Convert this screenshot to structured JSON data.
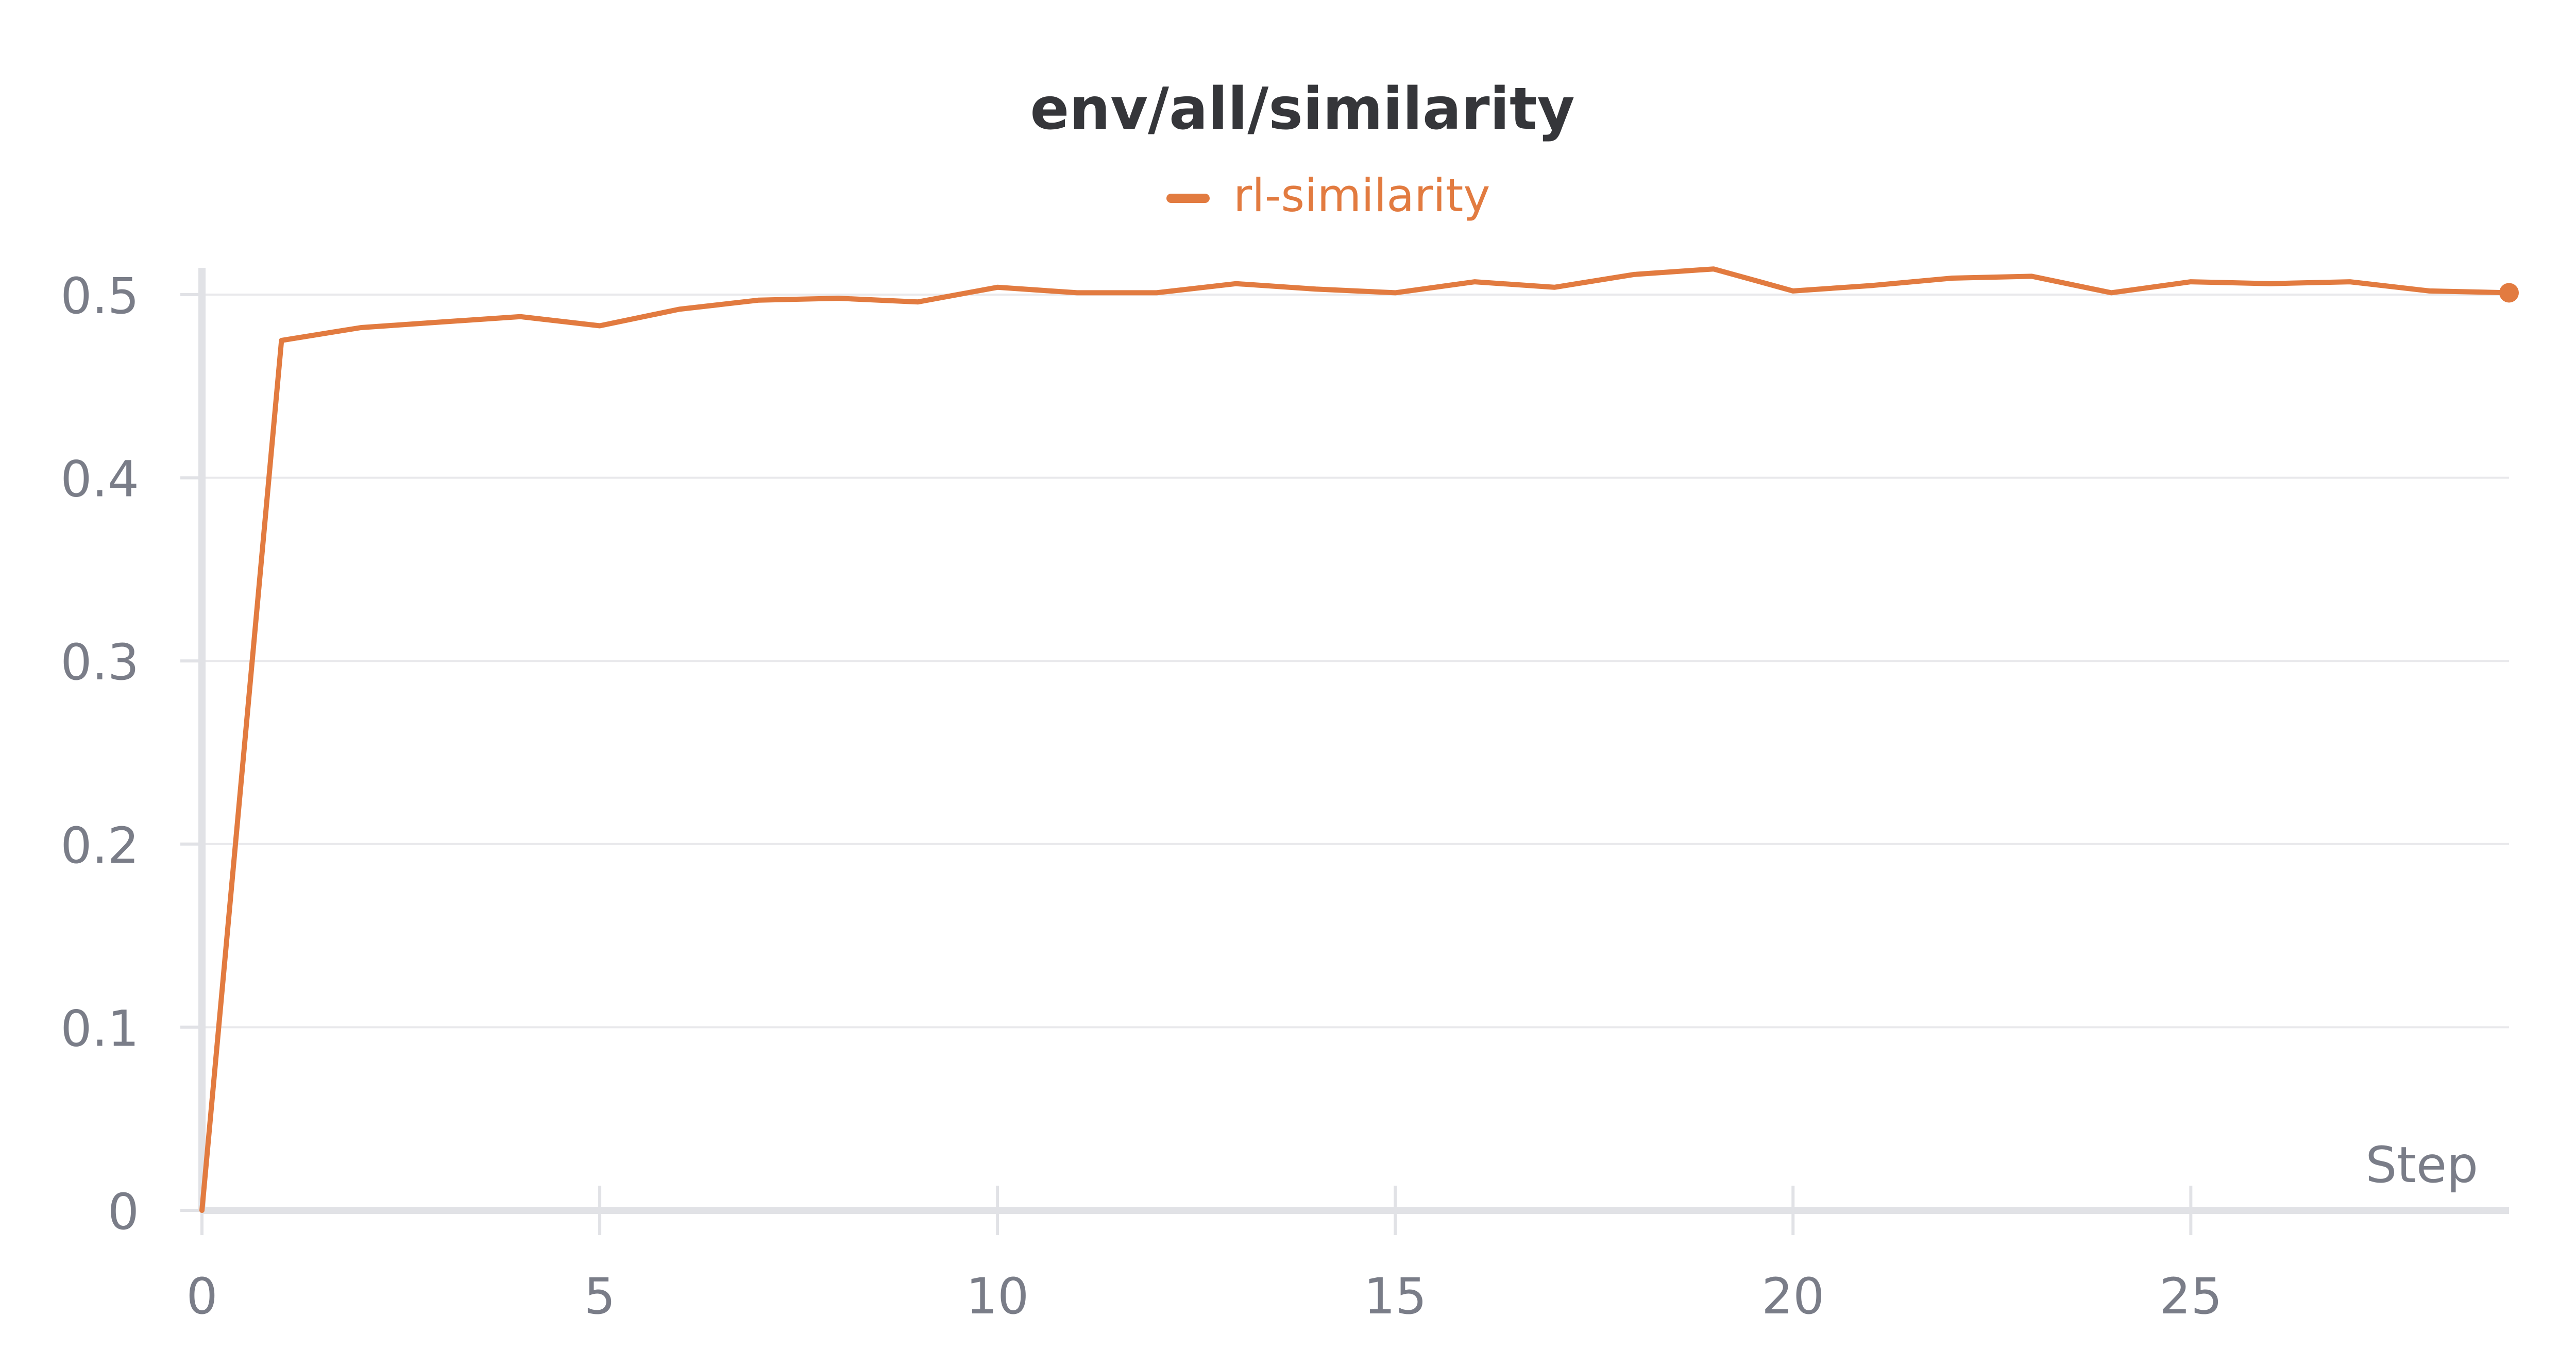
{
  "chart_data": {
    "type": "line",
    "title": "env/all/similarity",
    "xlabel": "Step",
    "ylabel": "",
    "xlim": [
      0,
      29
    ],
    "ylim": [
      0,
      0.5
    ],
    "x_ticks": [
      0,
      5,
      10,
      15,
      20,
      25
    ],
    "y_ticks": [
      0,
      0.1,
      0.2,
      0.3,
      0.4,
      0.5
    ],
    "y_tick_labels": [
      "0",
      "0.1",
      "0.2",
      "0.3",
      "0.4",
      "0.5"
    ],
    "grid": true,
    "legend_position": "top-center",
    "series": [
      {
        "name": "rl-similarity",
        "color": "#e27b40",
        "x": [
          0,
          1,
          2,
          3,
          4,
          5,
          6,
          7,
          8,
          9,
          10,
          11,
          12,
          13,
          14,
          15,
          16,
          17,
          18,
          19,
          20,
          21,
          22,
          23,
          24,
          25,
          26,
          27,
          28,
          29
        ],
        "y": [
          0.0,
          0.475,
          0.482,
          0.485,
          0.488,
          0.483,
          0.492,
          0.497,
          0.498,
          0.496,
          0.504,
          0.501,
          0.501,
          0.506,
          0.503,
          0.501,
          0.507,
          0.504,
          0.511,
          0.514,
          0.502,
          0.505,
          0.509,
          0.51,
          0.501,
          0.507,
          0.506,
          0.507,
          0.502,
          0.501
        ]
      }
    ]
  }
}
